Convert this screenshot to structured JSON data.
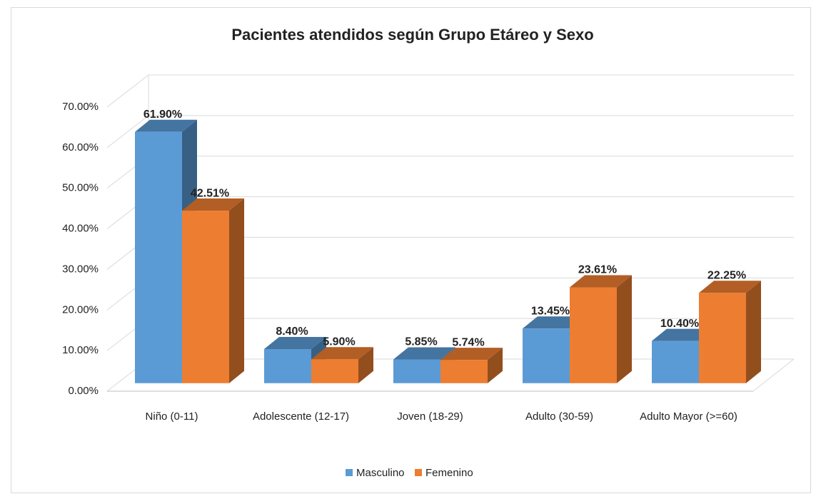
{
  "chart_data": {
    "type": "bar3d",
    "title": "Pacientes atendidos según Grupo Etáreo y Sexo",
    "categories": [
      "Niño (0-11)",
      "Adolescente (12-17)",
      "Joven (18-29)",
      "Adulto (30-59)",
      "Adulto Mayor (>=60)"
    ],
    "series": [
      {
        "name": "Masculino",
        "color": "#5b9bd5",
        "values": [
          61.9,
          8.4,
          5.85,
          13.45,
          10.4
        ],
        "value_labels": [
          "61.90%",
          "8.40%",
          "5.85%",
          "13.45%",
          "10.40%"
        ]
      },
      {
        "name": "Femenino",
        "color": "#ed7d31",
        "values": [
          42.51,
          5.9,
          5.74,
          23.61,
          22.25
        ],
        "value_labels": [
          "42.51%",
          "5.90%",
          "5.74%",
          "23.61%",
          "22.25%"
        ]
      }
    ],
    "ylim": [
      0,
      70
    ],
    "yticks": [
      {
        "value": 0,
        "label": "0.00%"
      },
      {
        "value": 10,
        "label": "10.00%"
      },
      {
        "value": 20,
        "label": "20.00%"
      },
      {
        "value": 30,
        "label": "30.00%"
      },
      {
        "value": 40,
        "label": "40.00%"
      },
      {
        "value": 50,
        "label": "50.00%"
      },
      {
        "value": 60,
        "label": "60.00%"
      },
      {
        "value": 70,
        "label": "70.00%"
      }
    ],
    "grid": true,
    "legend": "bottom"
  }
}
